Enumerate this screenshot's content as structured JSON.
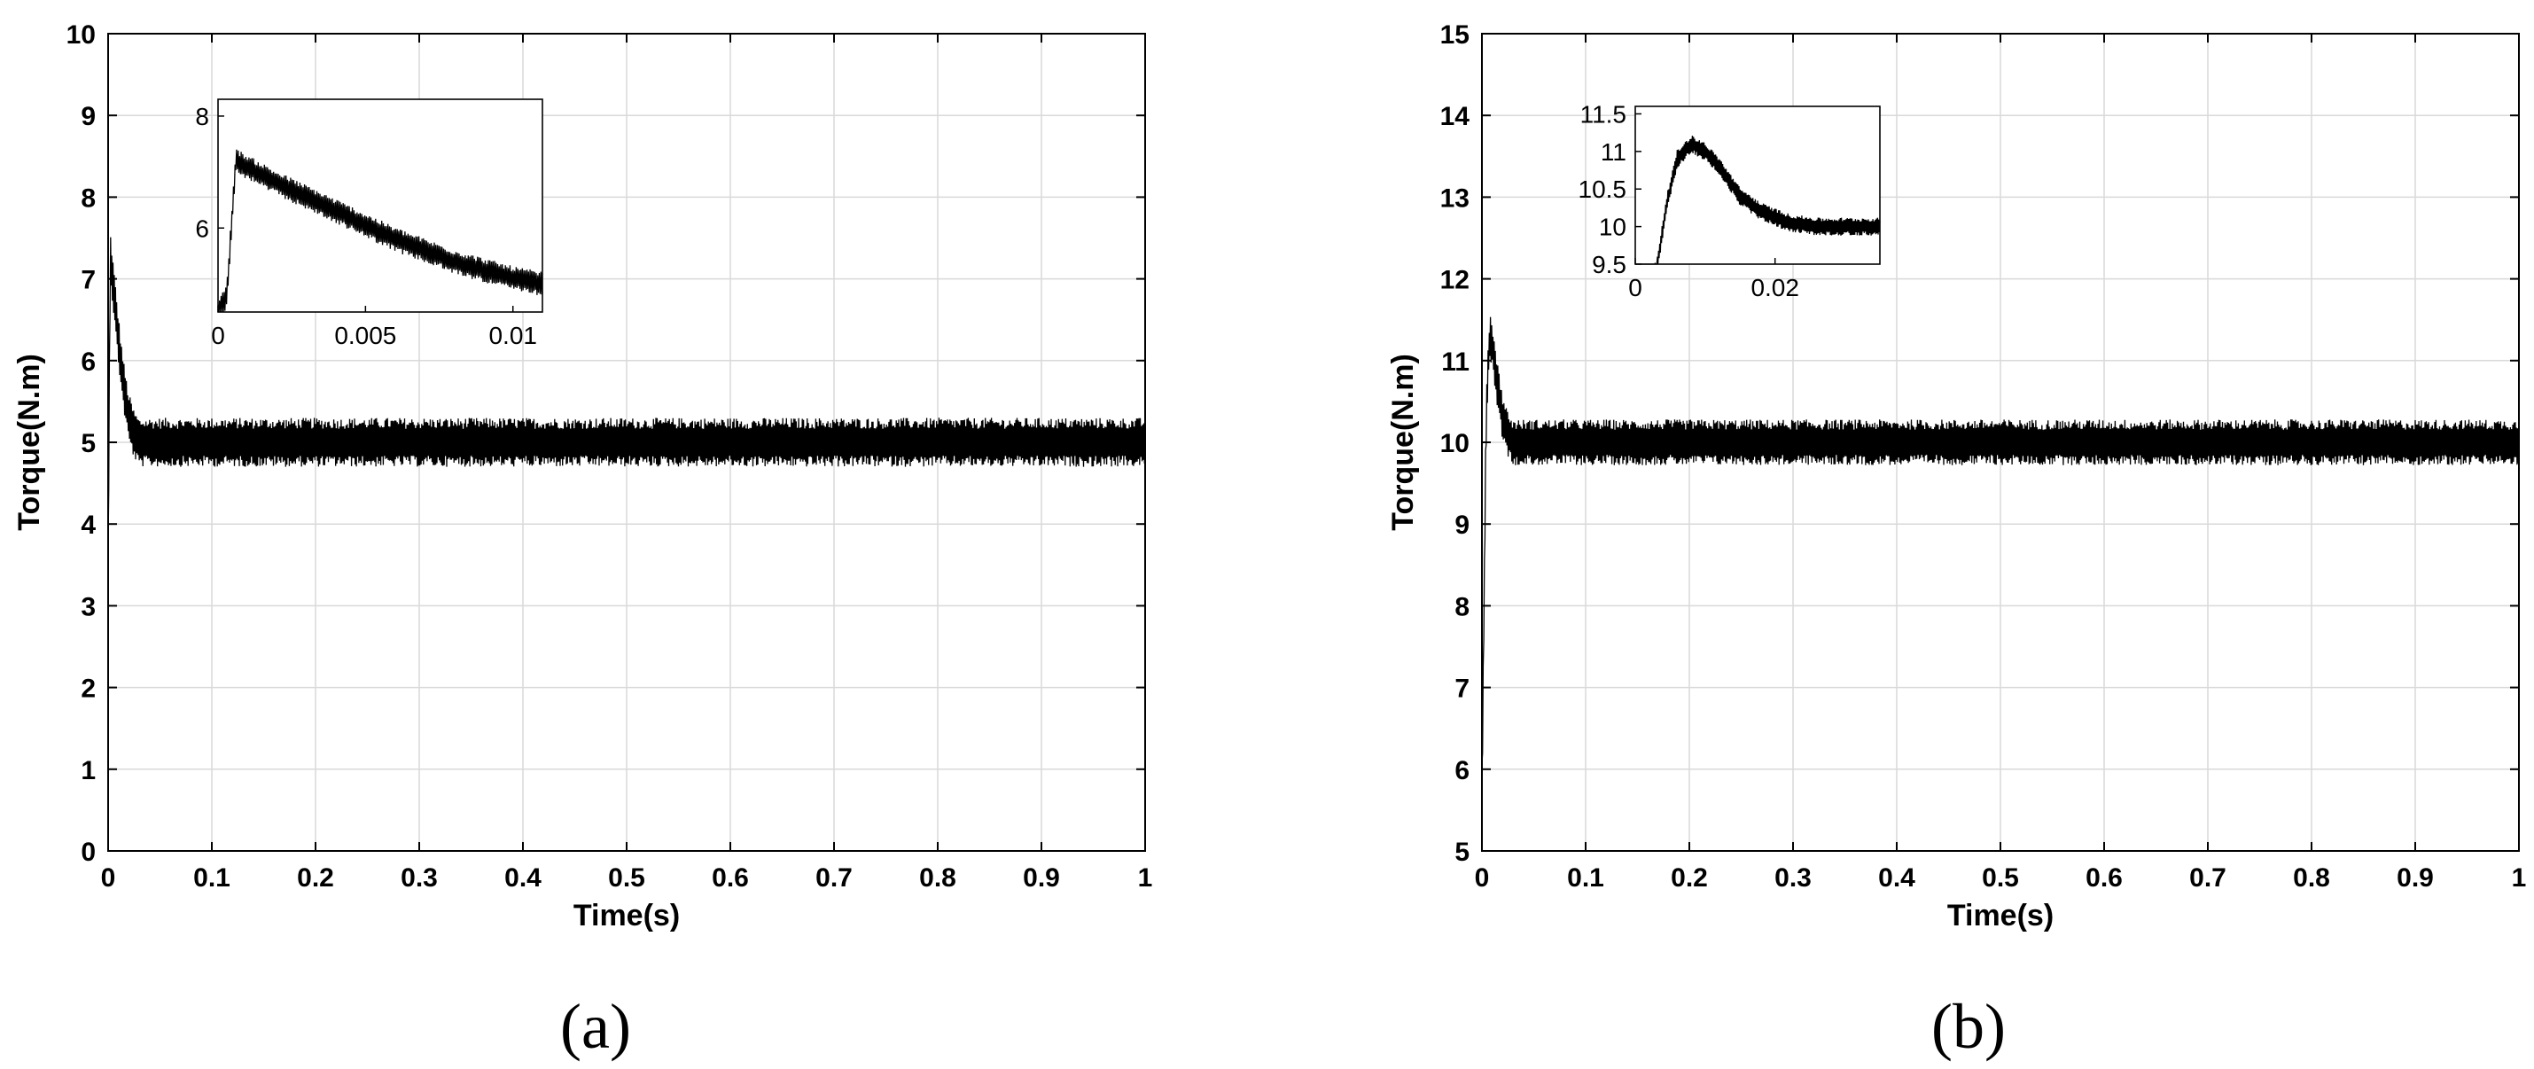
{
  "chart_data": [
    {
      "type": "line",
      "panel_label": "(a)",
      "xlabel": "Time(s)",
      "ylabel": "Torque(N.m)",
      "xlim": [
        0,
        1
      ],
      "ylim": [
        0,
        10
      ],
      "xticks": [
        "0",
        "0.1",
        "0.2",
        "0.3",
        "0.4",
        "0.5",
        "0.6",
        "0.7",
        "0.8",
        "0.9",
        "1"
      ],
      "yticks": [
        "0",
        "1",
        "2",
        "3",
        "4",
        "5",
        "6",
        "7",
        "8",
        "9",
        "10"
      ],
      "grid": true,
      "line_color": "#000000",
      "series": [
        {
          "x": [
            0,
            0.002,
            0.005,
            0.008,
            0.012,
            0.016,
            0.02,
            0.025,
            0.03,
            0.04,
            0.05,
            0.1,
            0.2,
            0.3,
            0.4,
            0.5,
            0.6,
            0.7,
            0.8,
            0.9,
            1.0
          ],
          "y": [
            3.5,
            7.3,
            6.9,
            6.5,
            6.0,
            5.6,
            5.3,
            5.1,
            5.0,
            5.0,
            5.0,
            5.0,
            5.0,
            5.0,
            5.0,
            5.0,
            5.0,
            5.0,
            5.0,
            5.0,
            5.0
          ],
          "ripple": 0.3
        }
      ],
      "inset": {
        "xlim": [
          0,
          0.011
        ],
        "ylim": [
          4.5,
          8.3
        ],
        "xticks": [
          "0",
          "0.005",
          "0.01"
        ],
        "yticks": [
          "6",
          "8"
        ],
        "series": [
          {
            "x": [
              0,
              0.0003,
              0.0006,
              0.002,
              0.004,
              0.006,
              0.008,
              0.01,
              0.011
            ],
            "y": [
              4.5,
              4.8,
              7.2,
              6.8,
              6.3,
              5.8,
              5.4,
              5.1,
              5.0
            ],
            "ripple": 0.22
          }
        ]
      }
    },
    {
      "type": "line",
      "panel_label": "(b)",
      "xlabel": "Time(s)",
      "ylabel": "Torque(N.m)",
      "xlim": [
        0,
        1
      ],
      "ylim": [
        5,
        15
      ],
      "xticks": [
        "0",
        "0.1",
        "0.2",
        "0.3",
        "0.4",
        "0.5",
        "0.6",
        "0.7",
        "0.8",
        "0.9",
        "1"
      ],
      "yticks": [
        "5",
        "6",
        "7",
        "8",
        "9",
        "10",
        "11",
        "12",
        "13",
        "14",
        "15"
      ],
      "grid": true,
      "line_color": "#000000",
      "series": [
        {
          "x": [
            0,
            0.002,
            0.004,
            0.006,
            0.008,
            0.011,
            0.015,
            0.02,
            0.025,
            0.03,
            0.04,
            0.1,
            0.2,
            0.3,
            0.4,
            0.5,
            0.6,
            0.7,
            0.8,
            0.9,
            1.0
          ],
          "y": [
            5.8,
            8.0,
            10.2,
            11.0,
            11.3,
            11.1,
            10.7,
            10.3,
            10.1,
            10.0,
            10.0,
            10.0,
            10.0,
            10.0,
            10.0,
            10.0,
            10.0,
            10.0,
            10.0,
            10.0,
            10.0
          ],
          "ripple": 0.28
        }
      ],
      "inset": {
        "xlim": [
          0,
          0.035
        ],
        "ylim": [
          9.5,
          11.6
        ],
        "xticks": [
          "0",
          "0.02"
        ],
        "yticks": [
          "9.5",
          "10",
          "10.5",
          "11",
          "11.5"
        ],
        "series": [
          {
            "x": [
              0,
              0.003,
              0.0045,
              0.006,
              0.008,
              0.01,
              0.012,
              0.015,
              0.018,
              0.022,
              0.026,
              0.03,
              0.035
            ],
            "y": [
              9.3,
              9.4,
              10.3,
              10.9,
              11.1,
              11.0,
              10.8,
              10.4,
              10.2,
              10.05,
              10.0,
              10.0,
              10.0
            ],
            "ripple": 0.12
          }
        ]
      }
    }
  ]
}
